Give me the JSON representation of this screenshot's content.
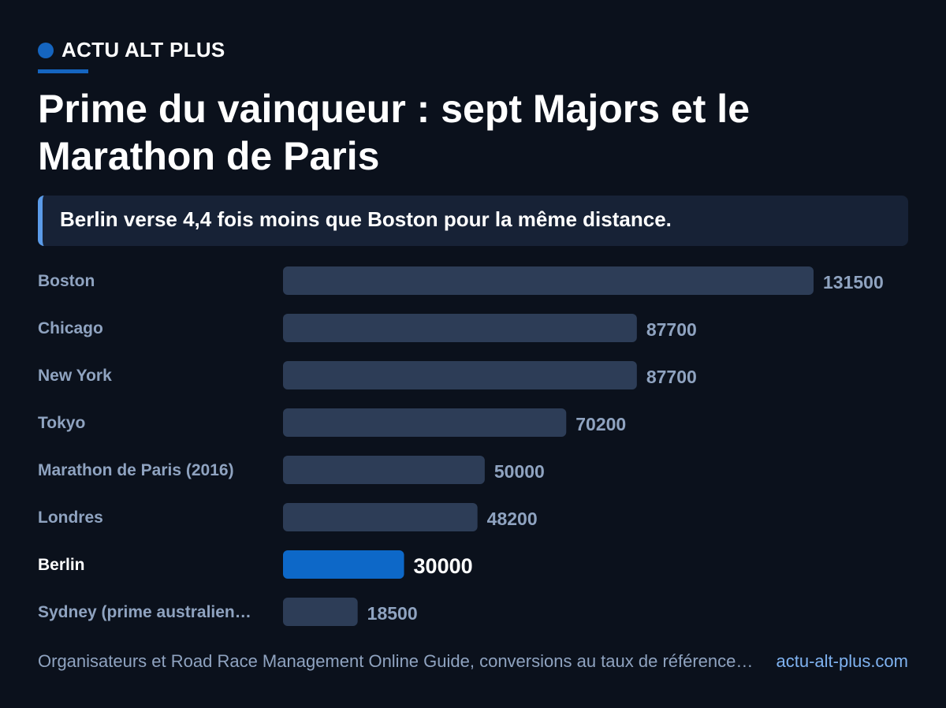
{
  "brand": {
    "name": "ACTU ALT PLUS"
  },
  "headline": "Prime du vainqueur : sept Majors et le Marathon de Paris",
  "callout": "Berlin verse 4,4 fois moins que Boston pour la même distance.",
  "colors": {
    "accent": "#1565c0",
    "bar_default": "#2d3d57",
    "bar_highlight": "#0d68c8",
    "label_default": "#8fa3c0",
    "label_highlight": "#ffffff"
  },
  "chart_data": {
    "type": "bar",
    "orientation": "horizontal",
    "categories": [
      "Boston",
      "Chicago",
      "New York",
      "Tokyo",
      "Marathon de Paris (2016)",
      "Londres",
      "Berlin",
      "Sydney (prime australien…"
    ],
    "values": [
      131500,
      87700,
      87700,
      70200,
      50000,
      48200,
      30000,
      18500
    ],
    "highlight": "Berlin",
    "title": "",
    "xlabel": "",
    "ylabel": "",
    "xlim": [
      0,
      131500
    ],
    "grid": false,
    "legend": "none"
  },
  "footer": {
    "source": "Organisateurs et Road Race Management Online Guide, conversions au taux de référence…",
    "site": "actu-alt-plus.com"
  }
}
